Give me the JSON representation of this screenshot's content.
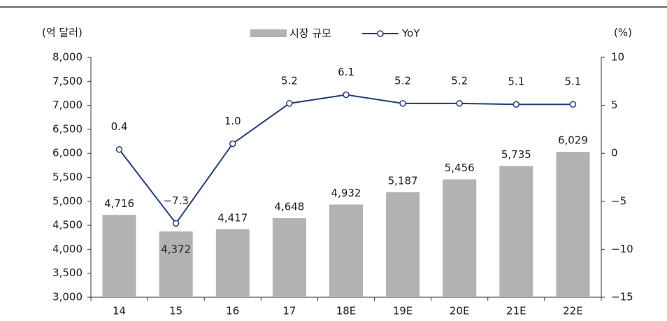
{
  "chart_data": {
    "type": "bar_line",
    "y_label": "(억 달러)",
    "y2_label": "(%)",
    "categories": [
      "14",
      "15",
      "16",
      "17",
      "18E",
      "19E",
      "20E",
      "21E",
      "22E"
    ],
    "series": [
      {
        "name": "시장 규모",
        "type": "bar",
        "color": "#b2b2b2",
        "values": [
          4716,
          4372,
          4417,
          4648,
          4932,
          5187,
          5456,
          5735,
          6029
        ],
        "value_labels": [
          "4,716",
          "4,372",
          "4,417",
          "4,648",
          "4,932",
          "5,187",
          "5,456",
          "5,735",
          "6,029"
        ]
      },
      {
        "name": "YoY",
        "type": "line",
        "axis": "y2",
        "color": "#1f3d8c",
        "values": [
          0.4,
          -7.3,
          1.0,
          5.2,
          6.1,
          5.2,
          5.2,
          5.1,
          5.1
        ],
        "value_labels": [
          "0.4",
          "−7.3",
          "1.0",
          "5.2",
          "6.1",
          "5.2",
          "5.2",
          "5.1",
          "5.1"
        ]
      }
    ],
    "ylim": [
      3000,
      8000
    ],
    "yticks": [
      {
        "value": 3000,
        "label": "3,000"
      },
      {
        "value": 3500,
        "label": "3,500"
      },
      {
        "value": 4000,
        "label": "4,000"
      },
      {
        "value": 4500,
        "label": "4,500"
      },
      {
        "value": 5000,
        "label": "5,000"
      },
      {
        "value": 5500,
        "label": "5,500"
      },
      {
        "value": 6000,
        "label": "6,000"
      },
      {
        "value": 6500,
        "label": "6,500"
      },
      {
        "value": 7000,
        "label": "7,000"
      },
      {
        "value": 7500,
        "label": "7,500"
      },
      {
        "value": 8000,
        "label": "8,000"
      }
    ],
    "y2lim": [
      -15,
      10
    ],
    "y2ticks": [
      {
        "value": -15,
        "label": "−15"
      },
      {
        "value": -10,
        "label": "−10"
      },
      {
        "value": -5,
        "label": "−5"
      },
      0,
      5,
      10
    ],
    "grid": false,
    "legend": "top"
  }
}
